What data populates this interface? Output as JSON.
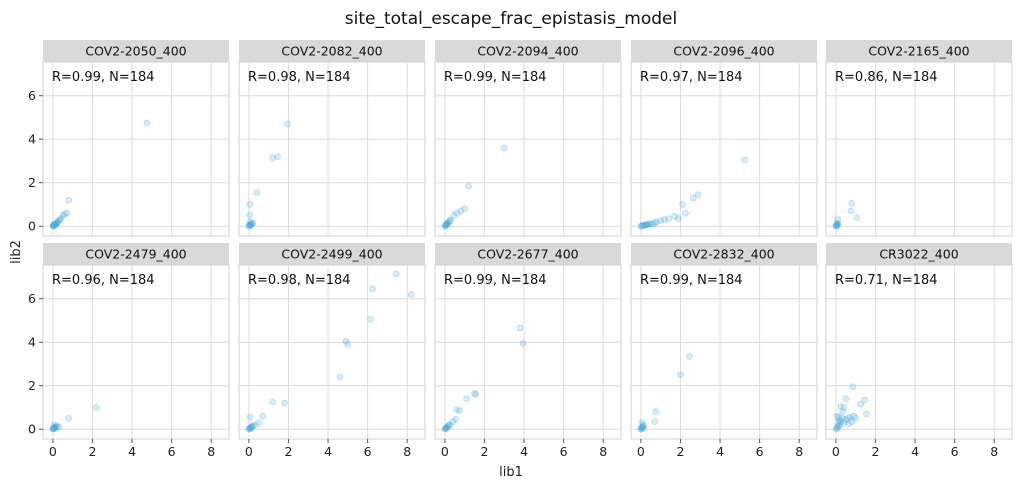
{
  "chart_data": {
    "type": "scatter",
    "title": "site_total_escape_frac_epistasis_model",
    "xlabel": "lib1",
    "ylabel": "lib2",
    "xlim": [
      -0.5,
      8.9
    ],
    "ylim": [
      -0.45,
      7.55
    ],
    "xticks": [
      0,
      2,
      4,
      6,
      8
    ],
    "yticks": [
      0,
      2,
      4,
      6
    ],
    "grid": true,
    "point_color": "#4aa8dc",
    "point_opacity": 0.22,
    "panels": [
      {
        "label": "COV2-2050_400",
        "annotation": "R=0.99, N=184",
        "points": [
          [
            0,
            0
          ],
          [
            0.02,
            0.03
          ],
          [
            0.05,
            0.02
          ],
          [
            0.08,
            0.06
          ],
          [
            0.1,
            0.08
          ],
          [
            0.12,
            0.05
          ],
          [
            0.15,
            0.1
          ],
          [
            0.18,
            0.12
          ],
          [
            0.2,
            0.15
          ],
          [
            0.25,
            0.2
          ],
          [
            0.3,
            0.25
          ],
          [
            0.35,
            0.3
          ],
          [
            0.03,
            0.01
          ],
          [
            0.06,
            0.09
          ],
          [
            0.4,
            0.35
          ],
          [
            0.5,
            0.5
          ],
          [
            0.6,
            0.55
          ],
          [
            0.7,
            0.6
          ],
          [
            0.8,
            1.2
          ],
          [
            4.75,
            4.75
          ]
        ]
      },
      {
        "label": "COV2-2082_400",
        "annotation": "R=0.98, N=184",
        "points": [
          [
            0,
            0
          ],
          [
            0.02,
            0.03
          ],
          [
            0.05,
            0.05
          ],
          [
            0.08,
            0.04
          ],
          [
            0.1,
            0.1
          ],
          [
            0.12,
            0.06
          ],
          [
            0.15,
            0.12
          ],
          [
            0.2,
            0.15
          ],
          [
            0.05,
            0.2
          ],
          [
            0.03,
            0.5
          ],
          [
            0.05,
            1.0
          ],
          [
            0.4,
            1.55
          ],
          [
            1.2,
            3.15
          ],
          [
            1.45,
            3.2
          ],
          [
            1.95,
            4.7
          ]
        ]
      },
      {
        "label": "COV2-2094_400",
        "annotation": "R=0.99, N=184",
        "points": [
          [
            0,
            0
          ],
          [
            0.02,
            0.03
          ],
          [
            0.05,
            0.05
          ],
          [
            0.08,
            0.07
          ],
          [
            0.1,
            0.1
          ],
          [
            0.12,
            0.08
          ],
          [
            0.15,
            0.15
          ],
          [
            0.2,
            0.2
          ],
          [
            0.25,
            0.25
          ],
          [
            0.3,
            0.3
          ],
          [
            0.45,
            0.5
          ],
          [
            0.6,
            0.6
          ],
          [
            0.8,
            0.7
          ],
          [
            1.0,
            0.8
          ],
          [
            1.2,
            1.85
          ],
          [
            3.0,
            3.6
          ]
        ]
      },
      {
        "label": "COV2-2096_400",
        "annotation": "R=0.97, N=184",
        "points": [
          [
            0,
            0
          ],
          [
            0.05,
            0.02
          ],
          [
            0.1,
            0.05
          ],
          [
            0.15,
            0.03
          ],
          [
            0.2,
            0.06
          ],
          [
            0.25,
            0.05
          ],
          [
            0.3,
            0.08
          ],
          [
            0.35,
            0.06
          ],
          [
            0.4,
            0.1
          ],
          [
            0.5,
            0.12
          ],
          [
            0.6,
            0.1
          ],
          [
            0.7,
            0.15
          ],
          [
            0.8,
            0.2
          ],
          [
            1.0,
            0.25
          ],
          [
            1.2,
            0.3
          ],
          [
            1.4,
            0.35
          ],
          [
            1.7,
            0.45
          ],
          [
            1.9,
            0.35
          ],
          [
            2.1,
            1.0
          ],
          [
            2.25,
            0.6
          ],
          [
            2.65,
            1.3
          ],
          [
            2.9,
            1.45
          ],
          [
            5.25,
            3.05
          ]
        ]
      },
      {
        "label": "COV2-2165_400",
        "annotation": "R=0.86, N=184",
        "points": [
          [
            0,
            0
          ],
          [
            0.02,
            0.02
          ],
          [
            0.04,
            0.05
          ],
          [
            0.06,
            0.03
          ],
          [
            0.08,
            0.08
          ],
          [
            0.1,
            0.1
          ],
          [
            0.05,
            0.15
          ],
          [
            0.1,
            0.3
          ],
          [
            0.8,
            1.05
          ],
          [
            0.75,
            0.7
          ],
          [
            1.05,
            0.4
          ]
        ]
      },
      {
        "label": "COV2-2479_400",
        "annotation": "R=0.96, N=184",
        "points": [
          [
            0,
            0
          ],
          [
            0.02,
            0.02
          ],
          [
            0.04,
            0.05
          ],
          [
            0.06,
            0.03
          ],
          [
            0.08,
            0.08
          ],
          [
            0.1,
            0.1
          ],
          [
            0.12,
            0.05
          ],
          [
            0.15,
            0.12
          ],
          [
            0.2,
            0.15
          ],
          [
            0.3,
            0.1
          ],
          [
            0.05,
            0.2
          ],
          [
            0.8,
            0.5
          ],
          [
            2.2,
            1.0
          ]
        ]
      },
      {
        "label": "COV2-2499_400",
        "annotation": "R=0.98, N=184",
        "points": [
          [
            0,
            0
          ],
          [
            0.02,
            0.03
          ],
          [
            0.05,
            0.05
          ],
          [
            0.08,
            0.04
          ],
          [
            0.1,
            0.1
          ],
          [
            0.12,
            0.06
          ],
          [
            0.15,
            0.12
          ],
          [
            0.2,
            0.15
          ],
          [
            0.3,
            0.2
          ],
          [
            0.05,
            0.55
          ],
          [
            0.5,
            0.3
          ],
          [
            0.7,
            0.6
          ],
          [
            1.2,
            1.25
          ],
          [
            1.8,
            1.2
          ],
          [
            4.6,
            2.4
          ],
          [
            4.9,
            4.05
          ],
          [
            5.0,
            3.9
          ],
          [
            6.15,
            5.05
          ],
          [
            6.25,
            6.45
          ],
          [
            7.45,
            7.15
          ],
          [
            8.2,
            6.2
          ]
        ]
      },
      {
        "label": "COV2-2677_400",
        "annotation": "R=0.99, N=184",
        "points": [
          [
            0,
            0
          ],
          [
            0.02,
            0.03
          ],
          [
            0.05,
            0.05
          ],
          [
            0.08,
            0.06
          ],
          [
            0.1,
            0.1
          ],
          [
            0.15,
            0.12
          ],
          [
            0.2,
            0.18
          ],
          [
            0.25,
            0.2
          ],
          [
            0.4,
            0.35
          ],
          [
            0.55,
            0.45
          ],
          [
            0.6,
            0.9
          ],
          [
            0.75,
            0.85
          ],
          [
            1.1,
            1.4
          ],
          [
            1.5,
            1.65
          ],
          [
            1.55,
            1.6
          ],
          [
            3.8,
            4.65
          ],
          [
            3.95,
            3.95
          ]
        ]
      },
      {
        "label": "COV2-2832_400",
        "annotation": "R=0.99, N=184",
        "points": [
          [
            0,
            0
          ],
          [
            0.02,
            0.03
          ],
          [
            0.04,
            0.05
          ],
          [
            0.06,
            0.08
          ],
          [
            0.08,
            0.1
          ],
          [
            0.1,
            0.15
          ],
          [
            0.12,
            0.2
          ],
          [
            0.05,
            0.3
          ],
          [
            0.15,
            0.05
          ],
          [
            0.7,
            0.35
          ],
          [
            0.75,
            0.8
          ],
          [
            2.0,
            2.5
          ],
          [
            2.45,
            3.35
          ]
        ]
      },
      {
        "label": "CR3022_400",
        "annotation": "R=0.71, N=184",
        "points": [
          [
            0,
            0
          ],
          [
            0.05,
            0.05
          ],
          [
            0.1,
            0.1
          ],
          [
            0.15,
            0.15
          ],
          [
            0.2,
            0.2
          ],
          [
            0.1,
            0.3
          ],
          [
            0.2,
            0.4
          ],
          [
            0.3,
            0.5
          ],
          [
            0.25,
            0.35
          ],
          [
            0.4,
            0.3
          ],
          [
            0.5,
            0.45
          ],
          [
            0.6,
            0.5
          ],
          [
            0.7,
            0.55
          ],
          [
            0.8,
            0.35
          ],
          [
            0.9,
            0.6
          ],
          [
            1.0,
            0.5
          ],
          [
            0.35,
            0.8
          ],
          [
            0.25,
            1.05
          ],
          [
            0.15,
            0.55
          ],
          [
            0.5,
            1.4
          ],
          [
            0.4,
            1.0
          ],
          [
            0.85,
            1.95
          ],
          [
            1.25,
            1.15
          ],
          [
            1.45,
            1.35
          ],
          [
            1.55,
            0.7
          ],
          [
            0.65,
            0.25
          ],
          [
            0.05,
            0.6
          ]
        ]
      }
    ]
  }
}
